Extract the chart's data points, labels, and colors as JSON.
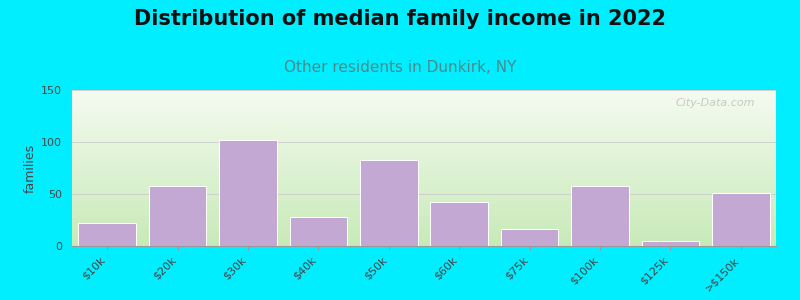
{
  "title": "Distribution of median family income in 2022",
  "subtitle": "Other residents in Dunkirk, NY",
  "ylabel": "families",
  "categories": [
    "$10k",
    "$20k",
    "$30k",
    "$40k",
    "$50k",
    "$60k",
    "$75k",
    "$100k",
    "$125k",
    ">$150k"
  ],
  "values": [
    22,
    58,
    102,
    28,
    83,
    42,
    16,
    58,
    5,
    51
  ],
  "bar_color": "#c4a8d4",
  "bar_edge_color": "#ffffff",
  "background_outer": "#00eeff",
  "ylim": [
    0,
    150
  ],
  "yticks": [
    0,
    50,
    100,
    150
  ],
  "title_fontsize": 15,
  "subtitle_fontsize": 11,
  "subtitle_color": "#4a8a8a",
  "ylabel_fontsize": 9,
  "watermark": "City-Data.com",
  "grad_top": "#f5fbf0",
  "grad_bottom": "#c8eab8",
  "grad_right": "#f8fcfa",
  "title_color": "#111111"
}
